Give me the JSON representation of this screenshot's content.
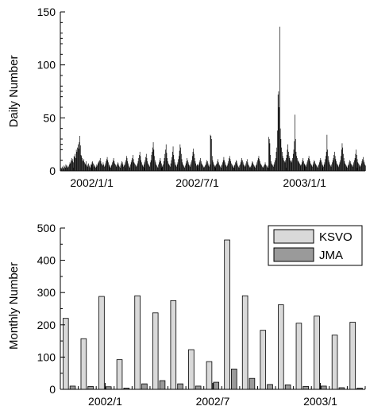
{
  "chart_data": [
    {
      "type": "bar",
      "ylabel": "Daily Number",
      "xlabel": "",
      "ylim": [
        0,
        150
      ],
      "yticks": [
        "0",
        "50",
        "100",
        "150"
      ],
      "x_range": [
        "2001-11-08",
        "2003-04-15"
      ],
      "xtick_labels": [
        "2002/1/1",
        "2002/7/1",
        "2003/1/1"
      ],
      "xtick_dates": [
        "2002-01-01",
        "2002-07-01",
        "2003-01-01"
      ],
      "bar_color": "#000000",
      "note": "daily counts, values approximated from the plot",
      "start_date": "2001-11-08",
      "values": [
        2,
        3,
        2,
        4,
        3,
        2,
        5,
        4,
        3,
        6,
        5,
        4,
        3,
        5,
        4,
        6,
        8,
        7,
        10,
        12,
        9,
        11,
        8,
        14,
        13,
        16,
        12,
        20,
        18,
        22,
        25,
        21,
        27,
        33,
        24,
        15,
        14,
        12,
        10,
        9,
        11,
        8,
        7,
        6,
        9,
        5,
        4,
        6,
        7,
        5,
        4,
        3,
        6,
        5,
        8,
        9,
        7,
        6,
        4,
        5,
        3,
        4,
        6,
        5,
        7,
        8,
        9,
        10,
        12,
        9,
        7,
        6,
        5,
        8,
        6,
        4,
        5,
        7,
        9,
        11,
        13,
        10,
        8,
        6,
        5,
        4,
        3,
        5,
        6,
        8,
        10,
        12,
        9,
        7,
        6,
        5,
        4,
        6,
        8,
        7,
        5,
        4,
        3,
        5,
        7,
        9,
        8,
        6,
        4,
        5,
        6,
        8,
        10,
        14,
        12,
        9,
        7,
        5,
        4,
        3,
        6,
        8,
        10,
        12,
        15,
        11,
        8,
        7,
        6,
        5,
        4,
        5,
        7,
        9,
        12,
        15,
        18,
        14,
        10,
        8,
        6,
        5,
        4,
        6,
        8,
        10,
        13,
        16,
        12,
        9,
        7,
        6,
        5,
        4,
        8,
        10,
        15,
        18,
        22,
        27,
        20,
        14,
        10,
        8,
        6,
        5,
        4,
        3,
        6,
        8,
        10,
        12,
        9,
        7,
        5,
        4,
        6,
        9,
        12,
        16,
        20,
        25,
        17,
        12,
        9,
        7,
        6,
        5,
        4,
        7,
        10,
        13,
        18,
        23,
        15,
        11,
        8,
        6,
        5,
        4,
        6,
        8,
        11,
        14,
        19,
        25,
        22,
        16,
        11,
        8,
        6,
        5,
        4,
        3,
        5,
        7,
        9,
        12,
        10,
        8,
        6,
        5,
        4,
        6,
        8,
        10,
        14,
        18,
        21,
        16,
        12,
        9,
        7,
        5,
        4,
        3,
        5,
        6,
        8,
        10,
        12,
        9,
        7,
        6,
        5,
        4,
        3,
        4,
        5,
        6,
        8,
        10,
        9,
        7,
        5,
        4,
        6,
        34,
        33,
        30,
        14,
        10,
        8,
        6,
        5,
        4,
        5,
        6,
        7,
        9,
        11,
        8,
        6,
        5,
        4,
        3,
        5,
        6,
        8,
        10,
        13,
        10,
        8,
        6,
        5,
        4,
        5,
        7,
        9,
        12,
        14,
        11,
        9,
        7,
        6,
        5,
        4,
        3,
        5,
        6,
        8,
        10,
        9,
        7,
        5,
        4,
        3,
        5,
        6,
        8,
        10,
        12,
        10,
        8,
        6,
        5,
        4,
        5,
        7,
        9,
        11,
        8,
        6,
        5,
        4,
        3,
        4,
        5,
        7,
        9,
        8,
        6,
        5,
        4,
        3,
        5,
        6,
        8,
        10,
        12,
        14,
        11,
        9,
        7,
        6,
        5,
        4,
        3,
        4,
        5,
        6,
        8,
        6,
        5,
        4,
        3,
        5,
        32,
        30,
        26,
        15,
        9,
        7,
        6,
        5,
        4,
        6,
        8,
        10,
        12,
        18,
        22,
        38,
        72,
        75,
        60,
        136,
        40,
        30,
        22,
        18,
        14,
        12,
        10,
        9,
        8,
        10,
        12,
        15,
        20,
        25,
        18,
        14,
        12,
        10,
        9,
        8,
        10,
        12,
        16,
        20,
        28,
        53,
        30,
        18,
        14,
        12,
        10,
        9,
        8,
        7,
        6,
        5,
        6,
        8,
        10,
        12,
        9,
        7,
        6,
        5,
        4,
        6,
        8,
        10,
        12,
        14,
        11,
        9,
        7,
        6,
        5,
        4,
        6,
        8,
        10,
        9,
        7,
        6,
        5,
        4,
        3,
        5,
        6,
        8,
        10,
        12,
        10,
        8,
        6,
        5,
        4,
        6,
        8,
        11,
        14,
        18,
        34,
        20,
        14,
        10,
        8,
        6,
        5,
        4,
        6,
        8,
        10,
        12,
        15,
        18,
        14,
        11,
        9,
        7,
        6,
        5,
        4,
        6,
        8,
        10,
        14,
        20,
        26,
        22,
        16,
        12,
        9,
        7,
        6,
        5,
        4,
        3,
        5,
        6,
        8,
        10,
        9,
        7,
        6,
        5,
        4,
        6,
        8,
        10,
        12,
        16,
        20,
        15,
        11,
        8,
        7,
        6,
        5,
        4,
        5,
        7,
        9,
        11,
        13,
        10,
        8,
        6,
        5,
        4,
        6,
        8,
        10,
        12,
        14,
        17,
        13,
        10,
        8,
        6,
        5,
        4,
        3,
        5,
        6,
        8,
        9,
        11,
        8,
        6,
        5,
        4,
        6,
        8,
        10,
        12,
        15,
        18,
        22,
        16,
        12,
        9,
        7,
        6,
        5,
        4,
        5,
        7,
        9,
        11,
        8,
        7,
        6,
        5,
        4,
        6,
        8,
        10,
        13,
        10,
        8,
        6,
        5,
        4,
        3,
        5,
        7,
        9,
        6,
        5
      ]
    },
    {
      "type": "bar",
      "ylabel": "Monthly Number",
      "xlabel": "",
      "ylim": [
        0,
        500
      ],
      "yticks": [
        "0",
        "100",
        "200",
        "300",
        "400",
        "500"
      ],
      "categories": [
        "2001-11",
        "2001-12",
        "2002-01",
        "2002-02",
        "2002-03",
        "2002-04",
        "2002-05",
        "2002-06",
        "2002-07",
        "2002-08",
        "2002-09",
        "2002-10",
        "2002-11",
        "2002-12",
        "2003-01",
        "2003-02",
        "2003-03"
      ],
      "xtick_labels": [
        "2002/1",
        "2002/7",
        "2003/1"
      ],
      "xtick_months": [
        "2002-01",
        "2002-07",
        "2003-01"
      ],
      "series": [
        {
          "name": "KSVO",
          "color": "#d9d9d9",
          "values": [
            220,
            157,
            288,
            92,
            290,
            237,
            275,
            123,
            86,
            463,
            290,
            183,
            262,
            205,
            227,
            168,
            208
          ]
        },
        {
          "name": "JMA",
          "color": "#9a9a9a",
          "values": [
            10,
            9,
            8,
            4,
            17,
            27,
            17,
            10,
            22,
            63,
            34,
            15,
            14,
            9,
            10,
            5,
            4
          ]
        }
      ],
      "legend": {
        "position": "top-right"
      }
    }
  ]
}
